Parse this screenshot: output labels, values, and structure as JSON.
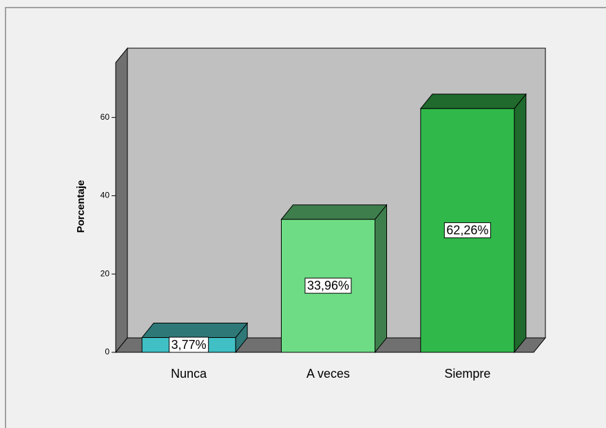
{
  "chart_data": {
    "type": "bar3d",
    "ylabel": "Porcentaje",
    "categories": [
      "Nunca",
      "A veces",
      "Siempre"
    ],
    "values": [
      3.77,
      33.96,
      62.26
    ],
    "value_labels": [
      "3,77%",
      "33,96%",
      "62,26%"
    ],
    "colors": [
      "#40c0c4",
      "#6edc84",
      "#30b84a"
    ],
    "side_colors": [
      "#2e7878",
      "#3e7e4c",
      "#1f6a2c"
    ],
    "ylim": [
      0,
      74
    ],
    "yticks": [
      0,
      20,
      40,
      60
    ]
  }
}
